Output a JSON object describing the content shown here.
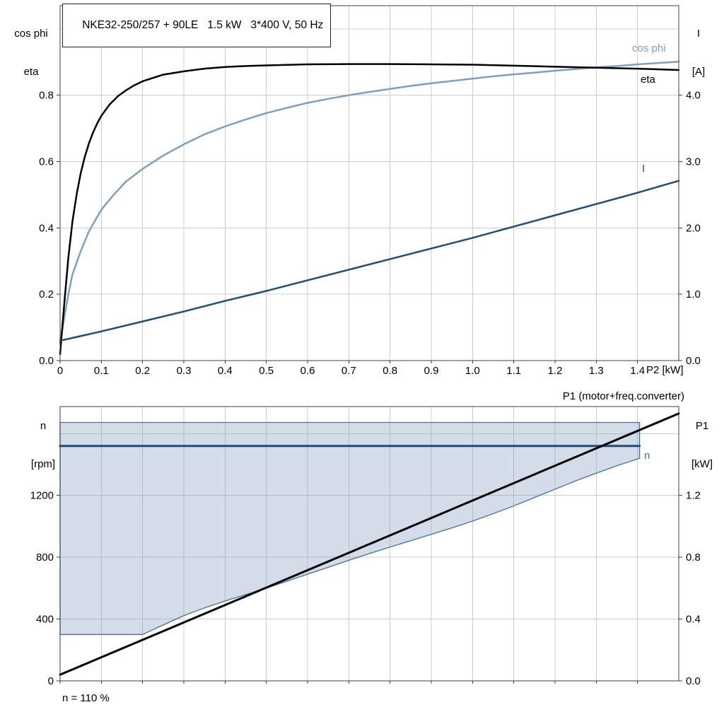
{
  "colors": {
    "background": "#ffffff",
    "grid": "#cccccc",
    "frame": "#3f3f3f",
    "tick": "#3f3f3f",
    "light_blue": "#7f9fc1",
    "dark_blue": "#1b4e7d",
    "band_fill": "rgba(127,159,193,0.35)",
    "band_stroke": "#41719c",
    "black": "#000000"
  },
  "chart_data": [
    {
      "type": "line",
      "title": "NKE32-250/257 + 90LE   1.5 kW   3*400 V, 50 Hz",
      "x_axis": {
        "label": "P2 [kW]",
        "range": [
          0,
          1.5
        ],
        "grid_step": 0.1,
        "tick_labels": [
          [
            0,
            "0"
          ],
          [
            0.1,
            "0.1"
          ],
          [
            0.2,
            "0.2"
          ],
          [
            0.3,
            "0.3"
          ],
          [
            0.4,
            "0.4"
          ],
          [
            0.5,
            "0.5"
          ],
          [
            0.6,
            "0.6"
          ],
          [
            0.7,
            "0.7"
          ],
          [
            0.8,
            "0.8"
          ],
          [
            0.9,
            "0.9"
          ],
          [
            1.0,
            "1.0"
          ],
          [
            1.1,
            "1.1"
          ],
          [
            1.2,
            "1.2"
          ],
          [
            1.3,
            "1.3"
          ],
          [
            1.4,
            "1.4"
          ]
        ]
      },
      "y_left": {
        "title_lines": [
          "cos phi",
          "eta"
        ],
        "range": [
          0,
          1.07
        ],
        "ticks": [
          [
            0,
            "0.0"
          ],
          [
            0.2,
            "0.2"
          ],
          [
            0.4,
            "0.4"
          ],
          [
            0.6,
            "0.6"
          ],
          [
            0.8,
            "0.8"
          ]
        ],
        "grid": [
          0.2,
          0.4,
          0.6,
          0.8,
          1.0
        ]
      },
      "y_right": {
        "title_lines": [
          "I",
          "[A]"
        ],
        "range": [
          0,
          5.35
        ],
        "ticks": [
          [
            0,
            "0.0"
          ],
          [
            1,
            "1.0"
          ],
          [
            2,
            "2.0"
          ],
          [
            3,
            "3.0"
          ],
          [
            4,
            "4.0"
          ]
        ]
      },
      "series": [
        {
          "id": "cos-phi",
          "name": "cos phi",
          "axis": "left",
          "color": "#7f9fc1",
          "width": 2.5,
          "points": [
            [
              0,
              0.05
            ],
            [
              0.01,
              0.13
            ],
            [
              0.02,
              0.2
            ],
            [
              0.03,
              0.26
            ],
            [
              0.05,
              0.33
            ],
            [
              0.07,
              0.39
            ],
            [
              0.1,
              0.455
            ],
            [
              0.13,
              0.5
            ],
            [
              0.16,
              0.54
            ],
            [
              0.2,
              0.578
            ],
            [
              0.25,
              0.618
            ],
            [
              0.3,
              0.652
            ],
            [
              0.35,
              0.682
            ],
            [
              0.4,
              0.706
            ],
            [
              0.45,
              0.727
            ],
            [
              0.5,
              0.746
            ],
            [
              0.55,
              0.762
            ],
            [
              0.6,
              0.777
            ],
            [
              0.65,
              0.789
            ],
            [
              0.7,
              0.8
            ],
            [
              0.75,
              0.81
            ],
            [
              0.8,
              0.819
            ],
            [
              0.85,
              0.828
            ],
            [
              0.9,
              0.836
            ],
            [
              0.95,
              0.843
            ],
            [
              1,
              0.85
            ],
            [
              1.05,
              0.857
            ],
            [
              1.1,
              0.863
            ],
            [
              1.15,
              0.868
            ],
            [
              1.2,
              0.874
            ],
            [
              1.25,
              0.879
            ],
            [
              1.3,
              0.884
            ],
            [
              1.35,
              0.888
            ],
            [
              1.4,
              0.893
            ],
            [
              1.45,
              0.897
            ],
            [
              1.5,
              0.901
            ]
          ]
        },
        {
          "id": "eta",
          "name": "eta",
          "axis": "left",
          "color": "#000000",
          "width": 2.5,
          "points": [
            [
              0,
              0.02
            ],
            [
              0.01,
              0.17
            ],
            [
              0.02,
              0.31
            ],
            [
              0.03,
              0.42
            ],
            [
              0.04,
              0.5
            ],
            [
              0.05,
              0.565
            ],
            [
              0.06,
              0.615
            ],
            [
              0.07,
              0.655
            ],
            [
              0.08,
              0.688
            ],
            [
              0.09,
              0.715
            ],
            [
              0.1,
              0.738
            ],
            [
              0.12,
              0.772
            ],
            [
              0.14,
              0.797
            ],
            [
              0.16,
              0.815
            ],
            [
              0.18,
              0.83
            ],
            [
              0.2,
              0.842
            ],
            [
              0.25,
              0.862
            ],
            [
              0.3,
              0.872
            ],
            [
              0.35,
              0.88
            ],
            [
              0.4,
              0.885
            ],
            [
              0.45,
              0.888
            ],
            [
              0.5,
              0.89
            ],
            [
              0.6,
              0.893
            ],
            [
              0.7,
              0.894
            ],
            [
              0.8,
              0.894
            ],
            [
              0.9,
              0.893
            ],
            [
              1,
              0.892
            ],
            [
              1.1,
              0.889
            ],
            [
              1.2,
              0.886
            ],
            [
              1.3,
              0.883
            ],
            [
              1.4,
              0.88
            ],
            [
              1.5,
              0.876
            ]
          ]
        },
        {
          "id": "current",
          "name": "I",
          "axis": "right",
          "color": "#1b4e7d",
          "width": 2.5,
          "points": [
            [
              0,
              0.3
            ],
            [
              0.1,
              0.44
            ],
            [
              0.2,
              0.59
            ],
            [
              0.3,
              0.74
            ],
            [
              0.4,
              0.9
            ],
            [
              0.5,
              1.05
            ],
            [
              0.6,
              1.21
            ],
            [
              0.7,
              1.37
            ],
            [
              0.8,
              1.53
            ],
            [
              0.9,
              1.69
            ],
            [
              1,
              1.85
            ],
            [
              1.1,
              2.02
            ],
            [
              1.2,
              2.19
            ],
            [
              1.3,
              2.36
            ],
            [
              1.4,
              2.53
            ],
            [
              1.5,
              2.71
            ]
          ]
        }
      ]
    },
    {
      "type": "line+area",
      "header_label": "P1 (motor+freq.converter)",
      "footnote": "n = 110 %",
      "x_axis": {
        "label": "",
        "range": [
          0,
          1.5
        ],
        "grid_step": 0.1,
        "tick_labels": []
      },
      "y_left": {
        "title_lines": [
          "n",
          "[rpm]"
        ],
        "range": [
          0,
          1775
        ],
        "ticks": [
          [
            0,
            "0"
          ],
          [
            400,
            "400"
          ],
          [
            800,
            "800"
          ],
          [
            1200,
            "1200"
          ]
        ],
        "grid": [
          400,
          800,
          1200,
          1600
        ]
      },
      "y_right": {
        "title_lines": [
          "P1",
          "[kW]"
        ],
        "range": [
          0,
          1.775
        ],
        "ticks": [
          [
            0,
            "0.0"
          ],
          [
            0.4,
            "0.4"
          ],
          [
            0.8,
            "0.8"
          ],
          [
            1.2,
            "1.2"
          ]
        ]
      },
      "band": {
        "upper_n": 1672,
        "x_right": 1.405,
        "fill": "rgba(127,159,193,0.35)",
        "stroke": "#41719c",
        "lower_points": [
          [
            0,
            300
          ],
          [
            0.2,
            300
          ],
          [
            0.25,
            362
          ],
          [
            0.3,
            422
          ],
          [
            0.35,
            472
          ],
          [
            0.4,
            517
          ],
          [
            0.45,
            558
          ],
          [
            0.5,
            600
          ],
          [
            0.55,
            645
          ],
          [
            0.6,
            690
          ],
          [
            0.65,
            735
          ],
          [
            0.7,
            780
          ],
          [
            0.75,
            824
          ],
          [
            0.8,
            866
          ],
          [
            0.85,
            907
          ],
          [
            0.9,
            948
          ],
          [
            0.95,
            990
          ],
          [
            1,
            1034
          ],
          [
            1.05,
            1082
          ],
          [
            1.1,
            1132
          ],
          [
            1.15,
            1186
          ],
          [
            1.2,
            1240
          ],
          [
            1.25,
            1294
          ],
          [
            1.3,
            1344
          ],
          [
            1.35,
            1392
          ],
          [
            1.405,
            1440
          ]
        ]
      },
      "series": [
        {
          "id": "n",
          "name": "n",
          "axis": "left",
          "color": "#1b4e7d",
          "width": 3,
          "points": [
            [
              0,
              1520
            ],
            [
              1.405,
              1520
            ]
          ]
        },
        {
          "id": "p1",
          "name": "P1",
          "axis": "right",
          "color": "#000000",
          "width": 3,
          "points": [
            [
              0,
              0.04
            ],
            [
              1.5,
              1.73
            ]
          ]
        }
      ]
    }
  ]
}
